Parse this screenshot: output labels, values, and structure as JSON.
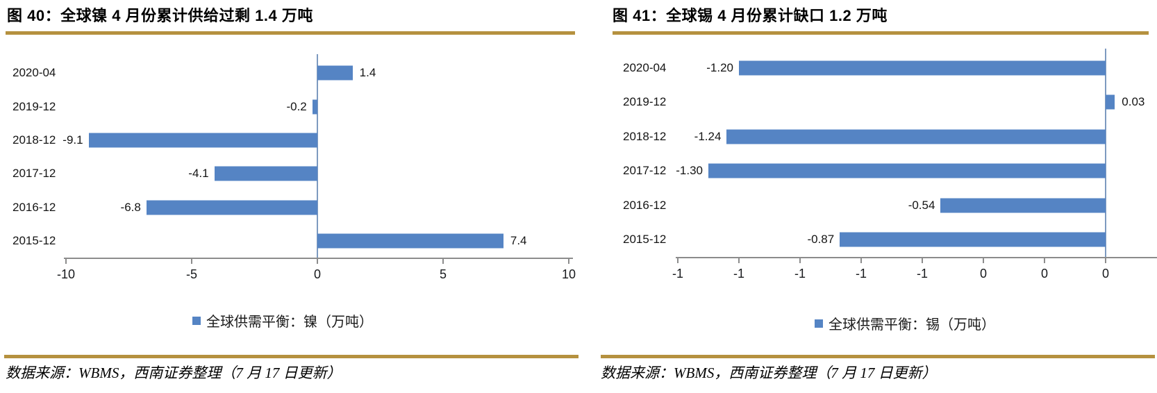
{
  "colors": {
    "bar": "#5584C4",
    "gold_rule": "#B5913F",
    "axis_line": "#8C8C8C",
    "zero_line": "#7D9AC0",
    "text": "#1A1A1A"
  },
  "chart_data": [
    {
      "type": "bar",
      "orientation": "horizontal",
      "title": "图 40：全球镍 4 月份累计供给过剩 1.4 万吨",
      "categories": [
        "2020-04",
        "2019-12",
        "2018-12",
        "2017-12",
        "2016-12",
        "2015-12"
      ],
      "values": [
        1.4,
        -0.2,
        -9.1,
        -4.1,
        -6.8,
        7.4
      ],
      "value_labels": [
        "1.4",
        "-0.2",
        "-9.1",
        "-4.1",
        "-6.8",
        "7.4"
      ],
      "series_name": "全球供需平衡：镍（万吨）",
      "legend": [
        "全球供需平衡：镍（万吨）"
      ],
      "legend_position": "bottom",
      "xlim": [
        -10,
        10
      ],
      "xticks": {
        "values": [
          -10,
          -5,
          0,
          5,
          10
        ],
        "labels": [
          "-10",
          "-5",
          "0",
          "5",
          "10"
        ]
      },
      "grid": false,
      "source": "数据来源：WBMS，西南证券整理（7 月 17 日更新）"
    },
    {
      "type": "bar",
      "orientation": "horizontal",
      "title": "图 41：全球锡 4 月份累计缺口 1.2 万吨",
      "categories": [
        "2020-04",
        "2019-12",
        "2018-12",
        "2017-12",
        "2016-12",
        "2015-12"
      ],
      "values": [
        -1.2,
        0.03,
        -1.24,
        -1.3,
        -0.54,
        -0.87
      ],
      "value_labels": [
        "-1.20",
        "0.03",
        "-1.24",
        "-1.30",
        "-0.54",
        "-0.87"
      ],
      "series_name": "全球供需平衡：锡（万吨）",
      "legend": [
        "全球供需平衡：锡（万吨）"
      ],
      "legend_position": "bottom",
      "xlim": [
        -1.4,
        0.168
      ],
      "xticks": {
        "values": [
          -1.4,
          -1.2,
          -1.0,
          -0.8,
          -0.6,
          -0.4,
          -0.2,
          0
        ],
        "labels": [
          "-1",
          "-1",
          "-1",
          "-1",
          "-1",
          "0",
          "0",
          "0"
        ]
      },
      "grid": false,
      "source": "数据来源：WBMS，西南证券整理（7 月 17 日更新）"
    }
  ]
}
